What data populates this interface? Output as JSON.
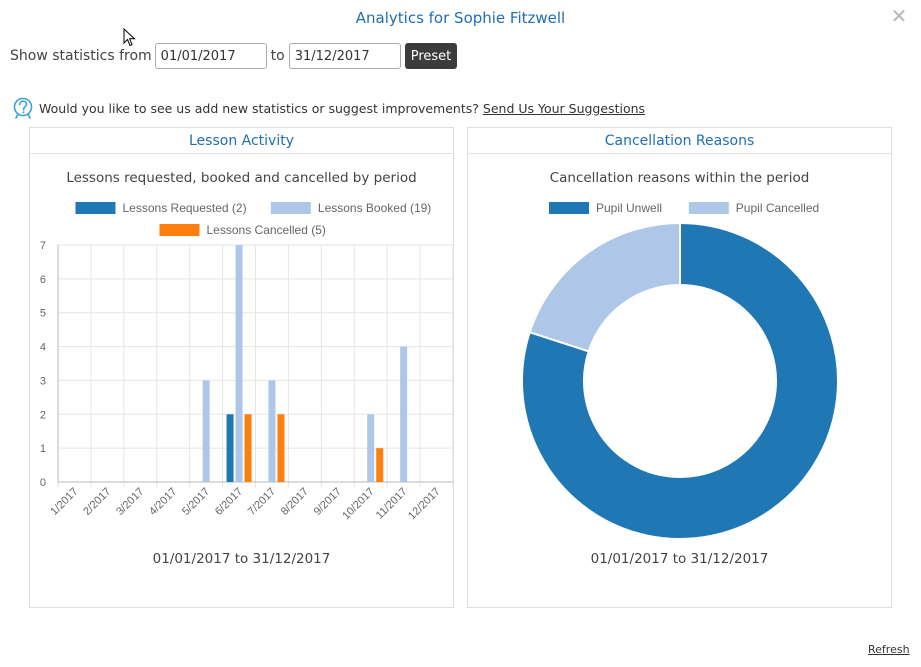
{
  "title": "Analytics for Sophie Fitzwell",
  "filter": {
    "label": "Show statistics from",
    "from": "01/01/2017",
    "to_label": "to",
    "to": "31/12/2017",
    "preset_label": "Preset"
  },
  "suggest": {
    "text": "Would you like to see us add new statistics or suggest improvements?",
    "link": "Send Us Your Suggestions"
  },
  "colors": {
    "accent": "#1f6fb2",
    "requested": "#1f77b4",
    "booked": "#aec7e8",
    "cancelled": "#ff7f0e"
  },
  "lesson_panel": {
    "heading": "Lesson Activity",
    "chart_title": "Lessons requested, booked and cancelled by period",
    "range": "01/01/2017 to 31/12/2017"
  },
  "cancel_panel": {
    "heading": "Cancellation Reasons",
    "chart_title": "Cancellation reasons within the period",
    "range": "01/01/2017 to 31/12/2017"
  },
  "refresh_label": "Refresh",
  "chart_data": [
    {
      "type": "bar",
      "title": "Lessons requested, booked and cancelled by period",
      "categories": [
        "1/2017",
        "2/2017",
        "3/2017",
        "4/2017",
        "5/2017",
        "6/2017",
        "7/2017",
        "8/2017",
        "9/2017",
        "10/2017",
        "11/2017",
        "12/2017"
      ],
      "series": [
        {
          "name": "Lessons Requested (2)",
          "values": [
            0,
            0,
            0,
            0,
            0,
            2,
            0,
            0,
            0,
            0,
            0,
            0
          ]
        },
        {
          "name": "Lessons Booked (19)",
          "values": [
            0,
            0,
            0,
            0,
            3,
            7,
            3,
            0,
            0,
            2,
            4,
            0
          ]
        },
        {
          "name": "Lessons Cancelled (5)",
          "values": [
            0,
            0,
            0,
            0,
            0,
            2,
            2,
            0,
            0,
            1,
            0,
            0
          ]
        }
      ],
      "ylim": [
        0,
        7
      ],
      "yticks": [
        0,
        1,
        2,
        3,
        4,
        5,
        6,
        7
      ],
      "grid": true,
      "legend": "top"
    },
    {
      "type": "pie",
      "title": "Cancellation reasons within the period",
      "labels": [
        "Pupil Unwell",
        "Pupil Cancelled"
      ],
      "values": [
        4,
        1
      ],
      "legend": "top"
    }
  ]
}
